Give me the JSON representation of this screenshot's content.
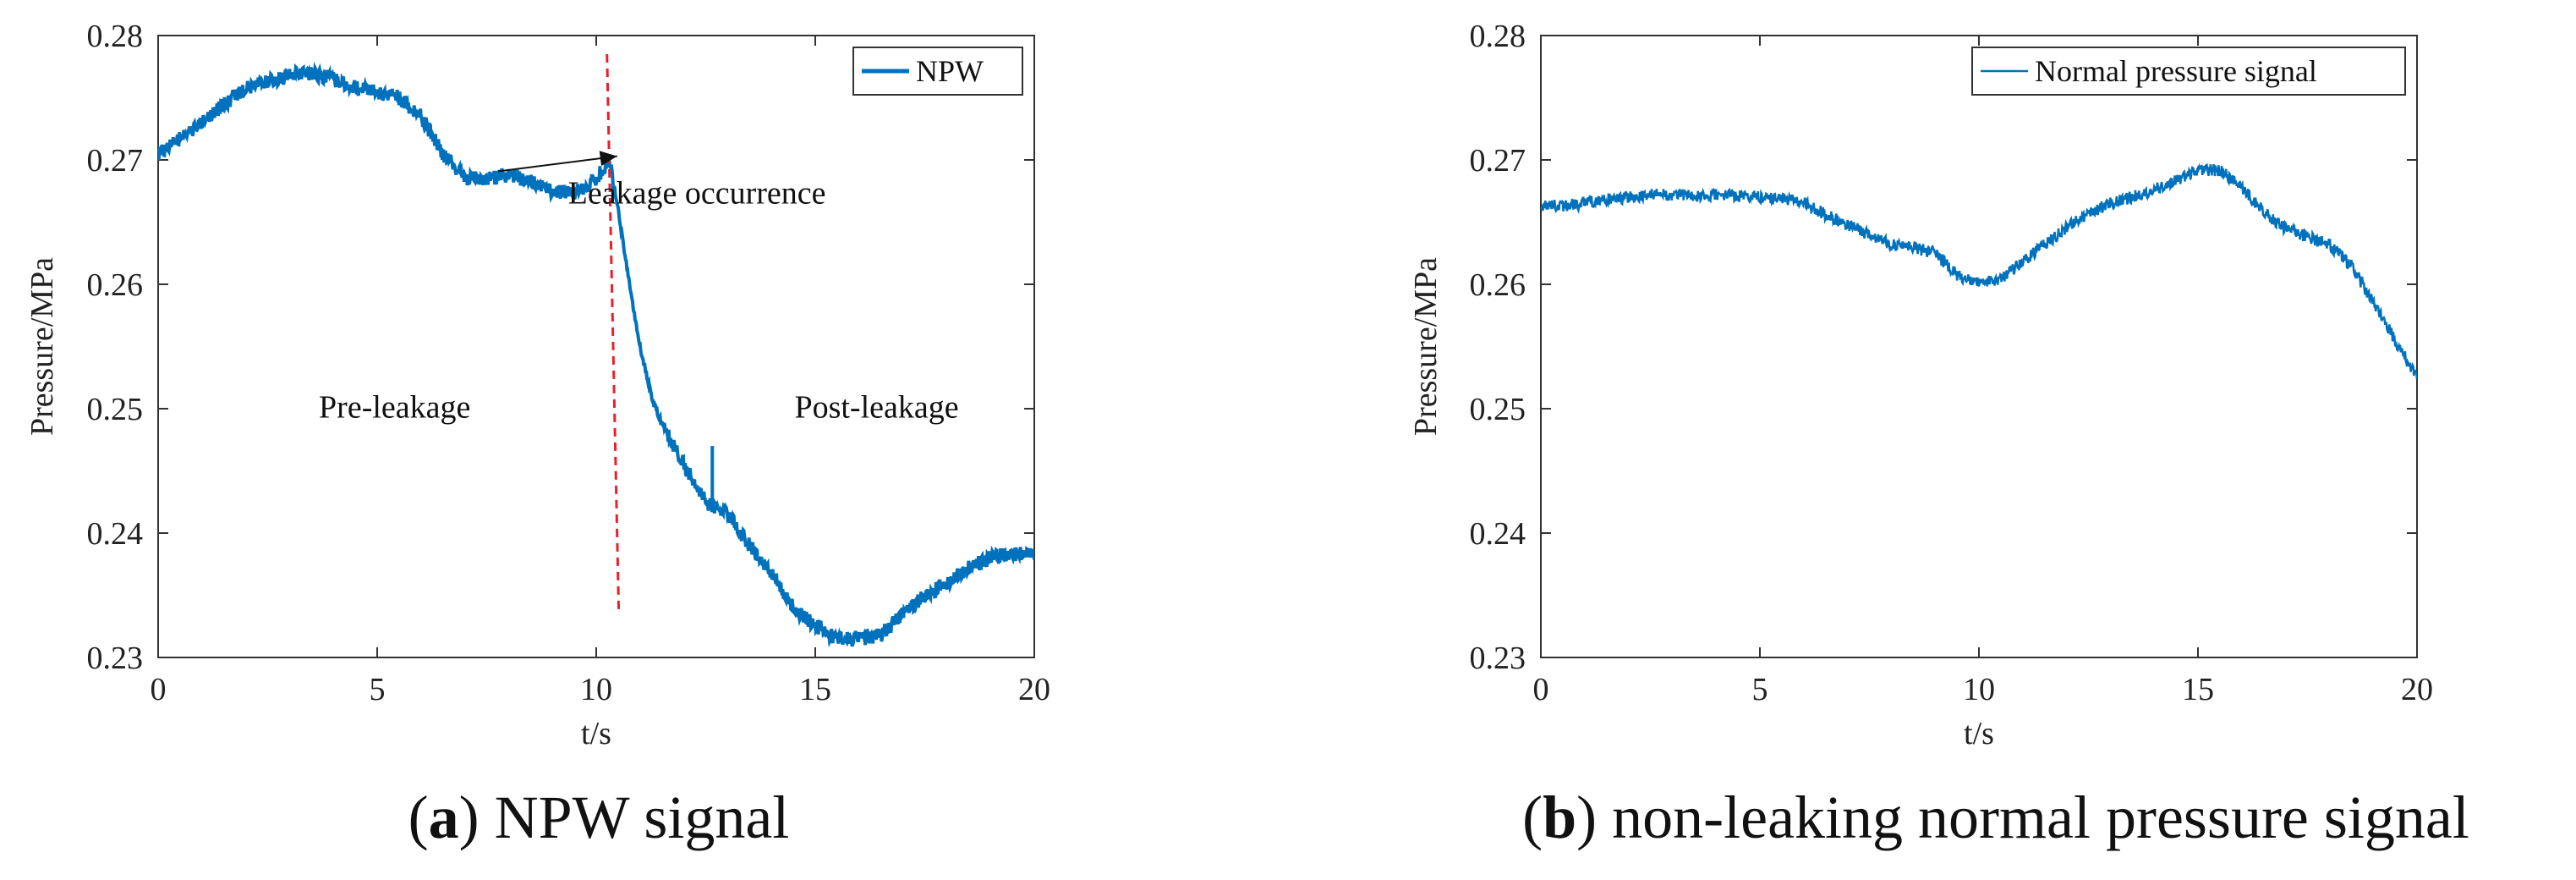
{
  "chart_data": [
    {
      "type": "line",
      "xlabel": "t/s",
      "ylabel": "Pressure/MPa",
      "xlim": [
        0,
        20
      ],
      "ylim": [
        0.23,
        0.28
      ],
      "xticks": [
        "0",
        "5",
        "10",
        "15",
        "20"
      ],
      "yticks": [
        "0.23",
        "0.24",
        "0.25",
        "0.26",
        "0.27",
        "0.28"
      ],
      "grid": false,
      "legend": "top-right",
      "caption": {
        "letter": "a",
        "text": "NPW signal"
      },
      "series": [
        {
          "name": "NPW",
          "color": "#0072bd",
          "x": [
            0,
            0.5,
            1,
            1.5,
            2,
            2.5,
            3,
            3.5,
            4,
            4.5,
            5,
            5.5,
            6,
            6.5,
            7,
            7.5,
            8,
            8.5,
            9,
            9.5,
            10,
            10.3,
            10.5,
            10.8,
            11,
            11.3,
            11.5,
            12,
            12.5,
            13,
            13.5,
            14,
            14.5,
            15,
            15.5,
            16,
            16.5,
            17,
            17.5,
            18,
            18.5,
            19,
            19.5,
            20
          ],
          "y": [
            0.2705,
            0.2718,
            0.273,
            0.2745,
            0.2757,
            0.2763,
            0.2768,
            0.277,
            0.2765,
            0.2758,
            0.2755,
            0.275,
            0.2735,
            0.2705,
            0.2685,
            0.2685,
            0.2688,
            0.2683,
            0.2675,
            0.2673,
            0.2685,
            0.27,
            0.266,
            0.259,
            0.255,
            0.2505,
            0.2488,
            0.2455,
            0.2425,
            0.2415,
            0.239,
            0.2368,
            0.234,
            0.2325,
            0.2315,
            0.2315,
            0.2318,
            0.2335,
            0.235,
            0.236,
            0.2372,
            0.238,
            0.2383,
            0.2383
          ]
        }
      ],
      "spike": {
        "x": 12.65,
        "y_low": 0.242,
        "y_high": 0.247
      },
      "leak_marker": {
        "x": 10.4,
        "style": "dashed",
        "color": "#e8202a"
      },
      "annotations": [
        {
          "text": "Leakage occurrence",
          "x": 12.3,
          "y": 0.2665,
          "arrow_to_x": 10.4,
          "arrow_to_y": 0.2703
        },
        {
          "text": "Pre-leakage",
          "x": 5.4,
          "y": 0.2493
        },
        {
          "text": "Post-leakage",
          "x": 16.4,
          "y": 0.2493
        }
      ]
    },
    {
      "type": "line",
      "xlabel": "t/s",
      "ylabel": "Pressure/MPa",
      "xlim": [
        0,
        20
      ],
      "ylim": [
        0.23,
        0.28
      ],
      "xticks": [
        "0",
        "5",
        "10",
        "15",
        "20"
      ],
      "yticks": [
        "0.23",
        "0.24",
        "0.25",
        "0.26",
        "0.27",
        "0.28"
      ],
      "grid": false,
      "legend": "top-right",
      "caption": {
        "letter": "b",
        "text": "non-leaking normal pressure signal"
      },
      "series": [
        {
          "name": "Normal pressure signal",
          "color": "#0072bd",
          "x": [
            0,
            0.5,
            1,
            1.5,
            2,
            2.5,
            3,
            3.5,
            4,
            4.5,
            5,
            5.5,
            6,
            6.5,
            7,
            7.5,
            8,
            8.5,
            9,
            9.5,
            10,
            10.5,
            11,
            11.5,
            12,
            12.5,
            13,
            13.5,
            14,
            14.5,
            15,
            15.5,
            16,
            16.5,
            17,
            17.5,
            18,
            18.5,
            19,
            19.5,
            20
          ],
          "y": [
            0.2663,
            0.2663,
            0.2665,
            0.2668,
            0.267,
            0.2672,
            0.2672,
            0.2671,
            0.2672,
            0.2671,
            0.267,
            0.2668,
            0.2666,
            0.2656,
            0.2648,
            0.264,
            0.2632,
            0.263,
            0.2625,
            0.2608,
            0.26,
            0.2605,
            0.2618,
            0.2632,
            0.2645,
            0.2657,
            0.2665,
            0.267,
            0.2676,
            0.2683,
            0.2692,
            0.2692,
            0.2678,
            0.2658,
            0.2645,
            0.2638,
            0.2632,
            0.2615,
            0.2585,
            0.2555,
            0.2525
          ]
        }
      ],
      "annotations": []
    }
  ]
}
